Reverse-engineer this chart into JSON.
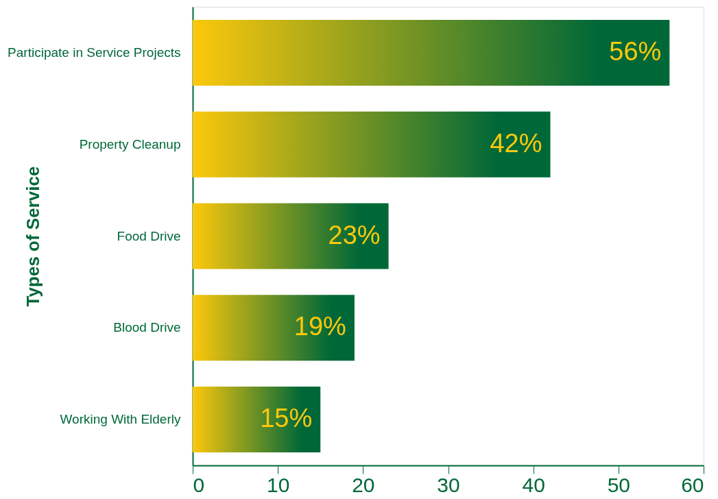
{
  "chart_data": {
    "type": "bar",
    "orientation": "horizontal",
    "ylabel": "Types of Service",
    "categories": [
      "Participate in Service Projects",
      "Property Cleanup",
      "Food Drive",
      "Blood Drive",
      "Working With Elderly"
    ],
    "values": [
      56,
      42,
      23,
      19,
      15
    ],
    "value_labels": [
      "56%",
      "42%",
      "23%",
      "19%",
      "15%"
    ],
    "color": "#006838",
    "xlim": [
      0,
      60
    ],
    "xticks": [
      0,
      10,
      20,
      30,
      40,
      50,
      60
    ],
    "grid": false
  }
}
